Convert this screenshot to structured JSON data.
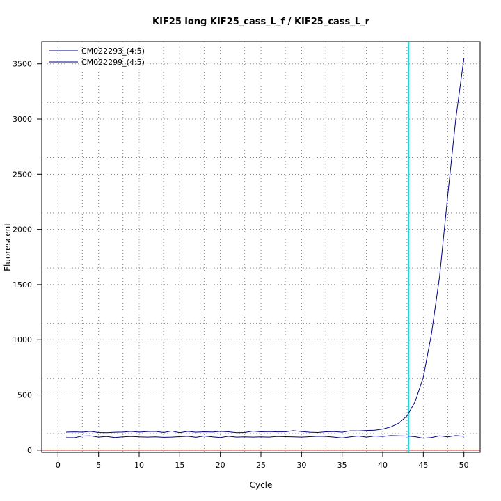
{
  "chart_data": {
    "type": "line",
    "title": "KIF25 long KIF25_cass_L_f / KIF25_cass_L_r",
    "xlabel": "Cycle",
    "ylabel": "Fluorescent",
    "xlim": [
      -2,
      52
    ],
    "ylim": [
      -20,
      3700
    ],
    "x_ticks": [
      0,
      5,
      10,
      15,
      20,
      25,
      30,
      35,
      40,
      45,
      50
    ],
    "y_ticks": [
      0,
      500,
      1000,
      1500,
      2000,
      2500,
      3000,
      3500
    ],
    "x_minor_grid": [
      3,
      8,
      13,
      18,
      23,
      28,
      33,
      38,
      43,
      48
    ],
    "y_minor_grid": [
      150,
      650,
      1150,
      1650,
      2150,
      2650,
      3150
    ],
    "legend_position": "top-left",
    "x": [
      1,
      2,
      3,
      4,
      5,
      6,
      7,
      8,
      9,
      10,
      11,
      12,
      13,
      14,
      15,
      16,
      17,
      18,
      19,
      20,
      21,
      22,
      23,
      24,
      25,
      26,
      27,
      28,
      29,
      30,
      31,
      32,
      33,
      34,
      35,
      36,
      37,
      38,
      39,
      40,
      41,
      42,
      43,
      44,
      45,
      46,
      47,
      48,
      49,
      50
    ],
    "series": [
      {
        "name": "CM022293_(4:5)",
        "color": "#000080",
        "values": [
          163,
          165,
          163,
          170,
          160,
          158,
          162,
          164,
          170,
          163,
          168,
          170,
          160,
          173,
          158,
          170,
          162,
          166,
          164,
          170,
          166,
          158,
          160,
          172,
          166,
          168,
          165,
          166,
          176,
          168,
          162,
          160,
          166,
          168,
          162,
          175,
          174,
          178,
          180,
          190,
          210,
          245,
          310,
          440,
          660,
          1050,
          1570,
          2300,
          3000,
          3550
        ]
      },
      {
        "name": "CM022299_(4:5)",
        "color": "#000080",
        "values": [
          113,
          112,
          128,
          130,
          118,
          124,
          114,
          120,
          124,
          120,
          118,
          120,
          116,
          118,
          122,
          126,
          116,
          128,
          120,
          114,
          126,
          118,
          120,
          118,
          120,
          118,
          124,
          122,
          120,
          118,
          122,
          126,
          124,
          118,
          110,
          120,
          128,
          118,
          128,
          124,
          132,
          130,
          128,
          122,
          108,
          114,
          130,
          120,
          132,
          126
        ]
      }
    ],
    "threshold": {
      "value": 0,
      "color": "#8b0000"
    },
    "ct_line": {
      "x": 43.2,
      "color": "#00e5ee"
    }
  }
}
